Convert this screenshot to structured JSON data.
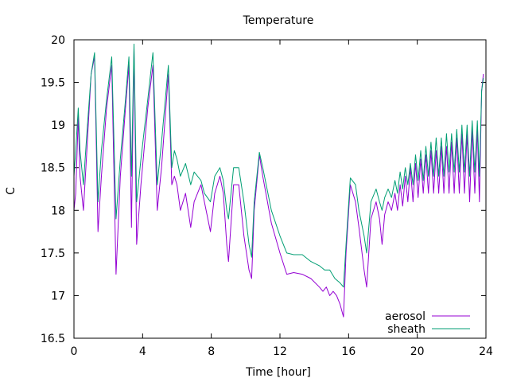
{
  "chart_data": {
    "type": "line",
    "title": "Temperature",
    "xlabel": "Time [hour]",
    "ylabel": "C",
    "xlim": [
      0,
      24
    ],
    "ylim": [
      16.5,
      20
    ],
    "xticks": [
      "0",
      "4",
      "8",
      "12",
      "16",
      "20",
      "24"
    ],
    "yticks": [
      "16.5",
      "17",
      "17.5",
      "18",
      "18.5",
      "19",
      "19.5",
      "20"
    ],
    "grid": false,
    "legend_position": "bottom-right",
    "series": [
      {
        "name": "aerosol",
        "color": "#9400d3",
        "points": [
          [
            0.0,
            18.0
          ],
          [
            0.1,
            18.2
          ],
          [
            0.25,
            19.1
          ],
          [
            0.35,
            18.4
          ],
          [
            0.55,
            18.0
          ],
          [
            0.75,
            18.7
          ],
          [
            1.0,
            19.6
          ],
          [
            1.2,
            19.8
          ],
          [
            1.4,
            17.75
          ],
          [
            1.6,
            18.4
          ],
          [
            1.9,
            19.2
          ],
          [
            2.2,
            19.7
          ],
          [
            2.45,
            17.25
          ],
          [
            2.7,
            18.4
          ],
          [
            3.0,
            19.2
          ],
          [
            3.2,
            19.7
          ],
          [
            3.35,
            17.8
          ],
          [
            3.5,
            19.9
          ],
          [
            3.65,
            17.6
          ],
          [
            3.9,
            18.3
          ],
          [
            4.3,
            19.2
          ],
          [
            4.6,
            19.7
          ],
          [
            4.85,
            18.0
          ],
          [
            5.1,
            18.5
          ],
          [
            5.5,
            19.6
          ],
          [
            5.7,
            18.3
          ],
          [
            5.85,
            18.4
          ],
          [
            6.0,
            18.3
          ],
          [
            6.2,
            18.0
          ],
          [
            6.5,
            18.2
          ],
          [
            6.8,
            17.8
          ],
          [
            7.0,
            18.1
          ],
          [
            7.4,
            18.3
          ],
          [
            7.6,
            18.1
          ],
          [
            7.95,
            17.75
          ],
          [
            8.2,
            18.2
          ],
          [
            8.5,
            18.4
          ],
          [
            8.7,
            18.2
          ],
          [
            8.9,
            17.6
          ],
          [
            9.0,
            17.4
          ],
          [
            9.3,
            18.3
          ],
          [
            9.6,
            18.3
          ],
          [
            9.9,
            17.7
          ],
          [
            10.2,
            17.3
          ],
          [
            10.35,
            17.2
          ],
          [
            10.5,
            18.0
          ],
          [
            10.8,
            18.65
          ],
          [
            11.0,
            18.4
          ],
          [
            11.5,
            17.85
          ],
          [
            12.0,
            17.5
          ],
          [
            12.4,
            17.25
          ],
          [
            12.8,
            17.27
          ],
          [
            13.3,
            17.25
          ],
          [
            13.8,
            17.2
          ],
          [
            14.3,
            17.1
          ],
          [
            14.5,
            17.05
          ],
          [
            14.7,
            17.1
          ],
          [
            14.9,
            17.0
          ],
          [
            15.1,
            17.05
          ],
          [
            15.3,
            17.0
          ],
          [
            15.5,
            16.9
          ],
          [
            15.7,
            16.75
          ],
          [
            15.85,
            17.5
          ],
          [
            16.1,
            18.3
          ],
          [
            16.4,
            18.1
          ],
          [
            16.6,
            17.8
          ],
          [
            16.9,
            17.3
          ],
          [
            17.05,
            17.1
          ],
          [
            17.3,
            17.9
          ],
          [
            17.6,
            18.1
          ],
          [
            17.8,
            17.9
          ],
          [
            17.95,
            17.6
          ],
          [
            18.1,
            17.95
          ],
          [
            18.3,
            18.1
          ],
          [
            18.5,
            18.0
          ],
          [
            18.7,
            18.2
          ],
          [
            18.85,
            18.0
          ],
          [
            19.0,
            18.3
          ],
          [
            19.15,
            18.05
          ],
          [
            19.3,
            18.4
          ],
          [
            19.45,
            18.1
          ],
          [
            19.6,
            18.5
          ],
          [
            19.75,
            18.1
          ],
          [
            19.9,
            18.55
          ],
          [
            20.05,
            18.15
          ],
          [
            20.2,
            18.6
          ],
          [
            20.35,
            18.2
          ],
          [
            20.5,
            18.65
          ],
          [
            20.65,
            18.2
          ],
          [
            20.8,
            18.7
          ],
          [
            20.95,
            18.2
          ],
          [
            21.1,
            18.7
          ],
          [
            21.25,
            18.2
          ],
          [
            21.4,
            18.75
          ],
          [
            21.55,
            18.2
          ],
          [
            21.7,
            18.75
          ],
          [
            21.85,
            18.2
          ],
          [
            22.0,
            18.8
          ],
          [
            22.15,
            18.2
          ],
          [
            22.3,
            18.85
          ],
          [
            22.45,
            18.2
          ],
          [
            22.6,
            18.9
          ],
          [
            22.75,
            18.2
          ],
          [
            22.9,
            18.9
          ],
          [
            23.05,
            18.1
          ],
          [
            23.2,
            18.95
          ],
          [
            23.35,
            18.2
          ],
          [
            23.5,
            18.95
          ],
          [
            23.62,
            18.1
          ],
          [
            23.75,
            19.4
          ],
          [
            23.85,
            19.6
          ]
        ]
      },
      {
        "name": "sheath",
        "color": "#009e73",
        "points": [
          [
            0.0,
            18.4
          ],
          [
            0.1,
            18.7
          ],
          [
            0.25,
            19.2
          ],
          [
            0.35,
            18.7
          ],
          [
            0.55,
            18.3
          ],
          [
            0.75,
            18.9
          ],
          [
            1.0,
            19.6
          ],
          [
            1.2,
            19.85
          ],
          [
            1.4,
            18.1
          ],
          [
            1.6,
            18.7
          ],
          [
            1.9,
            19.3
          ],
          [
            2.2,
            19.8
          ],
          [
            2.45,
            17.9
          ],
          [
            2.7,
            18.6
          ],
          [
            3.0,
            19.3
          ],
          [
            3.2,
            19.8
          ],
          [
            3.35,
            18.4
          ],
          [
            3.5,
            19.95
          ],
          [
            3.65,
            18.1
          ],
          [
            3.9,
            18.6
          ],
          [
            4.3,
            19.3
          ],
          [
            4.6,
            19.85
          ],
          [
            4.85,
            18.3
          ],
          [
            5.1,
            18.8
          ],
          [
            5.5,
            19.7
          ],
          [
            5.7,
            18.5
          ],
          [
            5.85,
            18.7
          ],
          [
            6.0,
            18.6
          ],
          [
            6.2,
            18.4
          ],
          [
            6.5,
            18.55
          ],
          [
            6.8,
            18.3
          ],
          [
            7.0,
            18.45
          ],
          [
            7.4,
            18.35
          ],
          [
            7.6,
            18.2
          ],
          [
            7.95,
            18.1
          ],
          [
            8.2,
            18.4
          ],
          [
            8.5,
            18.5
          ],
          [
            8.7,
            18.35
          ],
          [
            8.9,
            18.0
          ],
          [
            9.0,
            17.9
          ],
          [
            9.3,
            18.5
          ],
          [
            9.6,
            18.5
          ],
          [
            9.9,
            18.1
          ],
          [
            10.2,
            17.6
          ],
          [
            10.35,
            17.45
          ],
          [
            10.5,
            18.1
          ],
          [
            10.8,
            18.68
          ],
          [
            11.0,
            18.5
          ],
          [
            11.5,
            18.0
          ],
          [
            12.0,
            17.7
          ],
          [
            12.4,
            17.5
          ],
          [
            12.8,
            17.48
          ],
          [
            13.3,
            17.48
          ],
          [
            13.8,
            17.4
          ],
          [
            14.3,
            17.35
          ],
          [
            14.6,
            17.3
          ],
          [
            14.9,
            17.3
          ],
          [
            15.2,
            17.2
          ],
          [
            15.5,
            17.15
          ],
          [
            15.7,
            17.1
          ],
          [
            15.85,
            17.6
          ],
          [
            16.1,
            18.38
          ],
          [
            16.4,
            18.3
          ],
          [
            16.6,
            18.0
          ],
          [
            16.9,
            17.7
          ],
          [
            17.05,
            17.5
          ],
          [
            17.3,
            18.1
          ],
          [
            17.6,
            18.25
          ],
          [
            17.8,
            18.1
          ],
          [
            17.95,
            18.0
          ],
          [
            18.1,
            18.15
          ],
          [
            18.3,
            18.25
          ],
          [
            18.5,
            18.15
          ],
          [
            18.7,
            18.35
          ],
          [
            18.85,
            18.2
          ],
          [
            19.0,
            18.45
          ],
          [
            19.15,
            18.25
          ],
          [
            19.3,
            18.5
          ],
          [
            19.45,
            18.3
          ],
          [
            19.6,
            18.55
          ],
          [
            19.75,
            18.3
          ],
          [
            19.9,
            18.65
          ],
          [
            20.05,
            18.35
          ],
          [
            20.2,
            18.7
          ],
          [
            20.35,
            18.35
          ],
          [
            20.5,
            18.75
          ],
          [
            20.65,
            18.4
          ],
          [
            20.8,
            18.8
          ],
          [
            20.95,
            18.4
          ],
          [
            21.1,
            18.85
          ],
          [
            21.25,
            18.4
          ],
          [
            21.4,
            18.85
          ],
          [
            21.55,
            18.4
          ],
          [
            21.7,
            18.9
          ],
          [
            21.85,
            18.45
          ],
          [
            22.0,
            18.9
          ],
          [
            22.15,
            18.45
          ],
          [
            22.3,
            18.95
          ],
          [
            22.45,
            18.45
          ],
          [
            22.6,
            19.0
          ],
          [
            22.75,
            18.45
          ],
          [
            22.9,
            19.0
          ],
          [
            23.05,
            18.4
          ],
          [
            23.2,
            19.05
          ],
          [
            23.35,
            18.45
          ],
          [
            23.5,
            19.05
          ],
          [
            23.62,
            18.4
          ],
          [
            23.75,
            19.4
          ],
          [
            23.85,
            19.55
          ]
        ]
      }
    ]
  }
}
